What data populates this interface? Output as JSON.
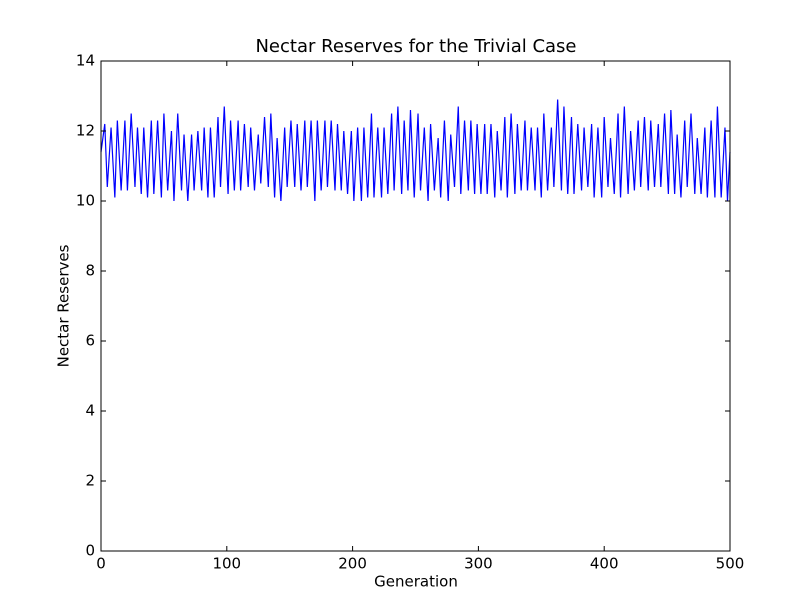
{
  "chart_data": {
    "type": "line",
    "title": "Nectar Reserves for the Trivial Case",
    "x_label": "Generation",
    "y_label": "Nectar Reserves",
    "color": "#0000ff",
    "xlim": [
      0,
      500
    ],
    "xticks": [
      0,
      100,
      200,
      300,
      400,
      500
    ],
    "ylim": [
      0,
      14
    ],
    "yticks": [
      0,
      2,
      4,
      6,
      8,
      10,
      12,
      14
    ],
    "x": [
      0,
      3,
      5,
      8,
      11,
      13,
      16,
      19,
      21,
      24,
      27,
      29,
      32,
      34,
      37,
      40,
      42,
      45,
      48,
      50,
      53,
      56,
      58,
      61,
      64,
      66,
      69,
      72,
      74,
      77,
      80,
      82,
      85,
      87,
      90,
      93,
      95,
      98,
      101,
      103,
      106,
      109,
      111,
      114,
      117,
      119,
      122,
      125,
      127,
      130,
      133,
      135,
      138,
      140,
      143,
      146,
      148,
      151,
      154,
      156,
      159,
      162,
      164,
      167,
      170,
      172,
      175,
      178,
      180,
      183,
      186,
      188,
      191,
      193,
      196,
      199,
      201,
      204,
      207,
      209,
      212,
      215,
      217,
      220,
      223,
      225,
      228,
      231,
      233,
      236,
      239,
      241,
      244,
      246,
      249,
      252,
      254,
      257,
      260,
      262,
      265,
      268,
      270,
      273,
      276,
      278,
      281,
      284,
      286,
      289,
      292,
      294,
      297,
      299,
      302,
      305,
      307,
      310,
      313,
      315,
      318,
      321,
      323,
      326,
      329,
      331,
      334,
      337,
      339,
      342,
      345,
      347,
      350,
      352,
      355,
      358,
      360,
      363,
      366,
      368,
      371,
      374,
      376,
      379,
      382,
      384,
      387,
      390,
      392,
      395,
      398,
      400,
      403,
      405,
      408,
      411,
      413,
      416,
      419,
      421,
      424,
      427,
      429,
      432,
      435,
      437,
      440,
      443,
      445,
      448,
      451,
      453,
      456,
      458,
      461,
      464,
      466,
      469,
      472,
      474,
      477,
      480,
      482,
      485,
      488,
      490,
      493,
      496,
      498,
      500
    ],
    "values": [
      11.4,
      12.2,
      10.4,
      12.1,
      10.1,
      12.3,
      10.3,
      12.3,
      10.3,
      12.5,
      10.4,
      12.1,
      10.2,
      12.1,
      10.1,
      12.3,
      10.2,
      12.3,
      10.1,
      12.5,
      10.3,
      12.0,
      10.0,
      12.5,
      10.3,
      11.9,
      10.0,
      11.9,
      10.3,
      12.0,
      10.3,
      12.1,
      10.1,
      12.1,
      10.1,
      12.4,
      10.4,
      12.7,
      10.2,
      12.3,
      10.3,
      12.3,
      10.3,
      12.2,
      10.4,
      12.1,
      10.3,
      11.9,
      10.5,
      12.4,
      10.4,
      12.5,
      10.1,
      11.8,
      10.0,
      12.1,
      10.4,
      12.3,
      10.4,
      12.2,
      10.3,
      12.3,
      10.4,
      12.3,
      10.0,
      12.3,
      10.3,
      12.3,
      10.4,
      12.3,
      10.3,
      12.2,
      10.3,
      12.0,
      10.2,
      12.0,
      10.0,
      12.1,
      10.0,
      12.1,
      10.1,
      12.5,
      10.1,
      12.1,
      10.1,
      12.1,
      10.2,
      12.5,
      10.3,
      12.7,
      10.2,
      12.3,
      10.3,
      12.6,
      10.1,
      12.5,
      10.3,
      12.1,
      10.0,
      12.2,
      10.3,
      11.8,
      10.1,
      12.3,
      10.0,
      11.9,
      10.4,
      12.7,
      10.2,
      12.3,
      10.3,
      12.3,
      10.2,
      12.2,
      10.2,
      12.2,
      10.2,
      12.2,
      10.1,
      12.0,
      10.3,
      12.4,
      10.1,
      12.5,
      10.2,
      12.2,
      10.3,
      12.3,
      10.3,
      12.1,
      10.3,
      12.1,
      10.1,
      12.5,
      10.3,
      12.1,
      10.4,
      12.9,
      10.3,
      12.7,
      10.2,
      12.4,
      10.2,
      12.2,
      10.3,
      12.1,
      10.4,
      12.2,
      10.1,
      12.1,
      10.1,
      12.4,
      10.4,
      11.8,
      10.2,
      12.5,
      10.1,
      12.7,
      10.2,
      12.0,
      10.3,
      12.3,
      10.4,
      12.4,
      10.3,
      12.3,
      10.4,
      12.2,
      10.4,
      12.5,
      10.2,
      12.6,
      10.2,
      11.9,
      10.1,
      12.3,
      10.4,
      12.5,
      10.2,
      11.8,
      10.2,
      12.1,
      10.1,
      12.3,
      10.1,
      12.7,
      10.1,
      12.1,
      10.0,
      11.4
    ]
  }
}
